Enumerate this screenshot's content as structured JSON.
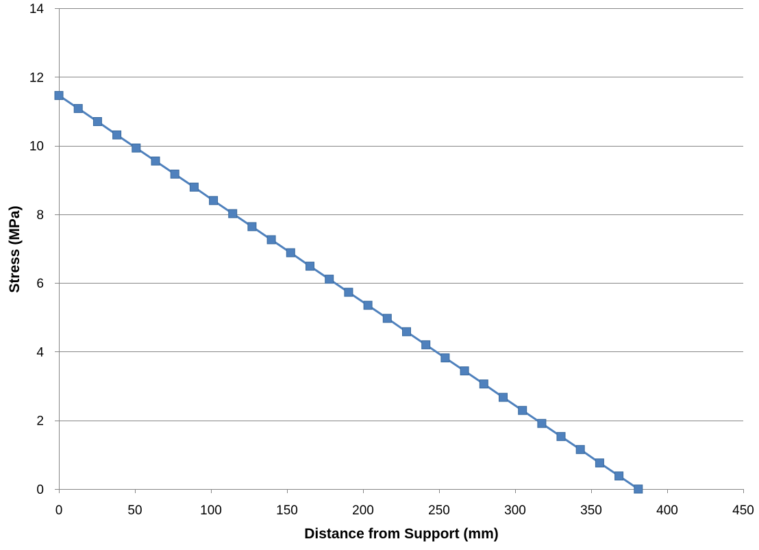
{
  "chart_data": {
    "type": "line",
    "title": "",
    "xlabel": "Distance from Support (mm)",
    "ylabel": "Stress (MPa)",
    "xlim": [
      0,
      450
    ],
    "ylim": [
      0,
      14
    ],
    "xticks": [
      0,
      50,
      100,
      150,
      200,
      250,
      300,
      350,
      400,
      450
    ],
    "yticks": [
      0,
      2,
      4,
      6,
      8,
      10,
      12,
      14
    ],
    "xtick_labels": [
      "0",
      "50",
      "100",
      "150",
      "200",
      "250",
      "300",
      "350",
      "400",
      "450"
    ],
    "ytick_labels": [
      "0",
      "2",
      "4",
      "6",
      "8",
      "10",
      "12",
      "14"
    ],
    "grid": {
      "horizontal": true,
      "vertical": false
    },
    "legend": "none",
    "series": [
      {
        "color": "#4F81BD",
        "marker": "square",
        "x": [
          0,
          12.7,
          25.4,
          38.1,
          50.8,
          63.5,
          76.2,
          88.9,
          101.6,
          114.3,
          127,
          139.7,
          152.4,
          165.1,
          177.8,
          190.5,
          203.2,
          215.9,
          228.6,
          241.3,
          254,
          266.7,
          279.4,
          292.1,
          304.8,
          317.5,
          330.2,
          342.9,
          355.6,
          368.3,
          381
        ],
        "y": [
          11.46,
          11.08,
          10.7,
          10.31,
          9.93,
          9.55,
          9.17,
          8.79,
          8.4,
          8.02,
          7.64,
          7.26,
          6.88,
          6.49,
          6.11,
          5.73,
          5.35,
          4.97,
          4.58,
          4.2,
          3.82,
          3.44,
          3.06,
          2.67,
          2.29,
          1.91,
          1.53,
          1.15,
          0.76,
          0.38,
          0.0
        ]
      }
    ]
  }
}
